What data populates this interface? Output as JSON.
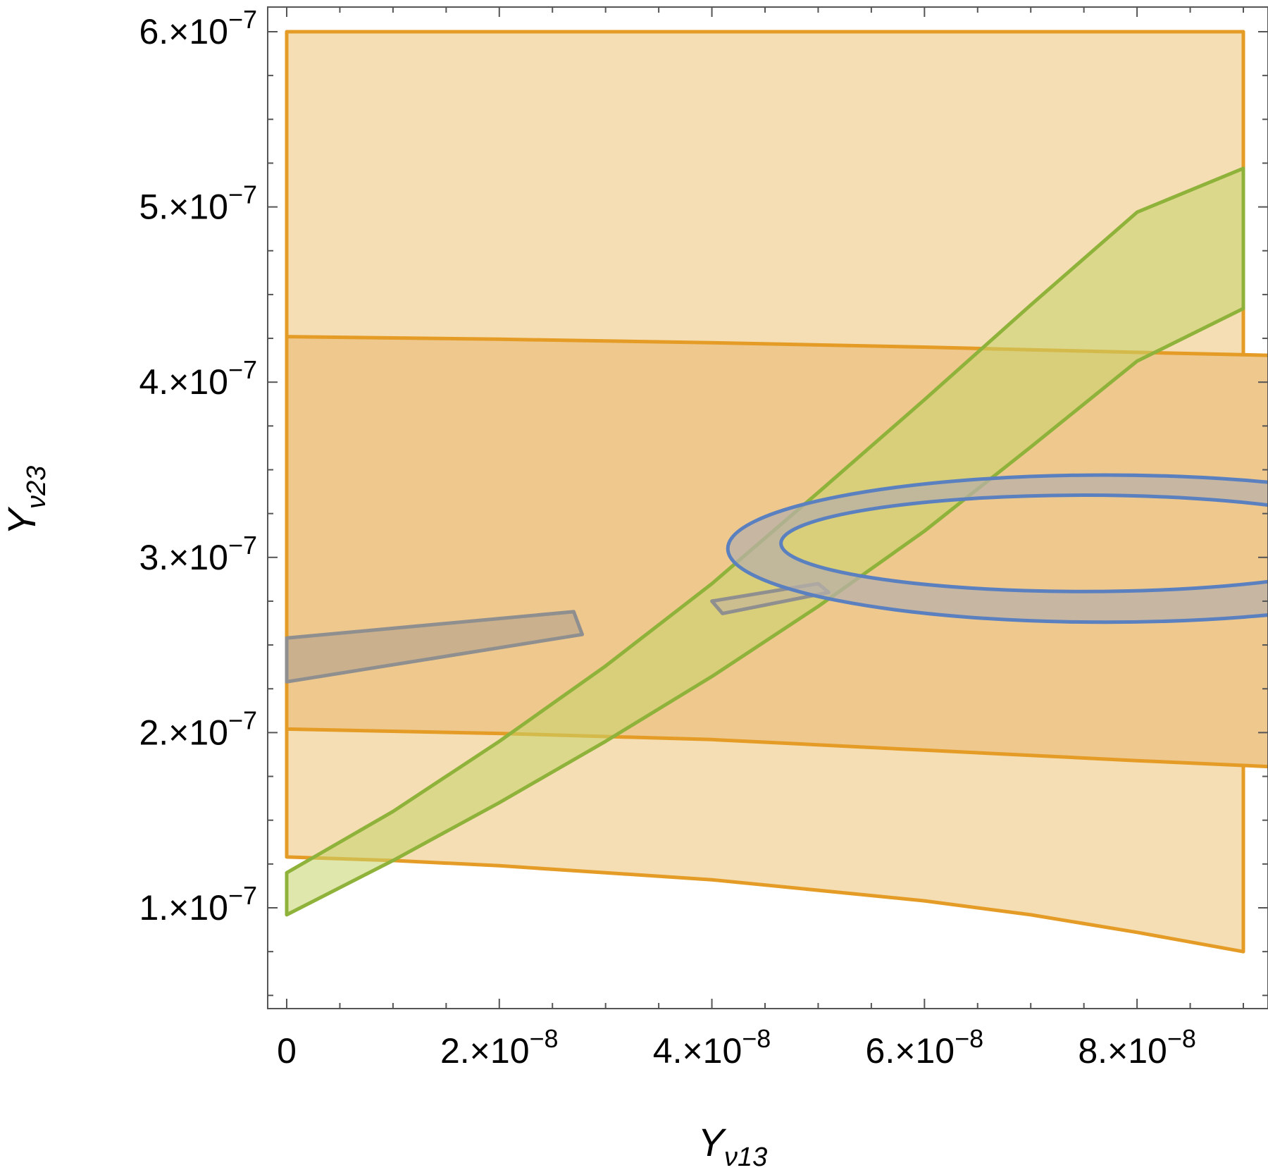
{
  "chart_data": {
    "type": "region",
    "title": "",
    "xlabel": {
      "base": "Y",
      "sub": "ν13"
    },
    "ylabel": {
      "base": "Y",
      "sub": "ν23"
    },
    "xlim": [
      0,
      9e-08
    ],
    "ylim": [
      5e-08,
      6e-07
    ],
    "grid": false,
    "x_ticks": [
      {
        "value": 0,
        "label": "0"
      },
      {
        "value": 2e-08,
        "mantissa": "2.",
        "exp": "−8"
      },
      {
        "value": 4e-08,
        "mantissa": "4.",
        "exp": "−8"
      },
      {
        "value": 6e-08,
        "mantissa": "6.",
        "exp": "−8"
      },
      {
        "value": 8e-08,
        "mantissa": "8.",
        "exp": "−8"
      }
    ],
    "y_ticks": [
      {
        "value": 1e-07,
        "mantissa": "1.",
        "exp": "−7"
      },
      {
        "value": 2e-07,
        "mantissa": "2.",
        "exp": "−7"
      },
      {
        "value": 3e-07,
        "mantissa": "3.",
        "exp": "−7"
      },
      {
        "value": 4e-07,
        "mantissa": "4.",
        "exp": "−7"
      },
      {
        "value": 5e-07,
        "mantissa": "5.",
        "exp": "−7"
      },
      {
        "value": 6e-07,
        "mantissa": "6.",
        "exp": "−7"
      }
    ],
    "regions": [
      {
        "id": "orange-outer",
        "fill": "#f5deb3",
        "fill_opacity": 1,
        "stroke": "#e49c26",
        "points": [
          [
            0,
            6e-07
          ],
          [
            9e-08,
            6e-07
          ],
          [
            9e-08,
            5.2e-07
          ],
          [
            9e-08,
            4.4e-07
          ],
          [
            9e-08,
            3e-07
          ],
          [
            9e-08,
            1e-07
          ],
          [
            9e-08,
            7.5e-08
          ],
          [
            8e-08,
            8.6e-08
          ],
          [
            7e-08,
            9.6e-08
          ],
          [
            6e-08,
            1.04e-07
          ],
          [
            4e-08,
            1.16e-07
          ],
          [
            2e-08,
            1.24e-07
          ],
          [
            1e-08,
            1.27e-07
          ],
          [
            0,
            1.29e-07
          ]
        ]
      },
      {
        "id": "orange-inner",
        "fill": "#efc88e",
        "fill_opacity": 1,
        "stroke": "#e49c26",
        "points": [
          [
            0,
            4.26e-07
          ],
          [
            2e-08,
            4.245e-07
          ],
          [
            4e-08,
            4.225e-07
          ],
          [
            6e-08,
            4.2e-07
          ],
          [
            8e-08,
            4.17e-07
          ],
          [
            9.45e-08,
            4.15e-07
          ],
          [
            9.45e-08,
            1.8e-07
          ],
          [
            8e-08,
            1.84e-07
          ],
          [
            6e-08,
            1.9e-07
          ],
          [
            4e-08,
            1.96e-07
          ],
          [
            2e-08,
            1.995e-07
          ],
          [
            0,
            2.02e-07
          ]
        ]
      },
      {
        "id": "green-band",
        "fill": "#c6d46a",
        "fill_opacity": 0.55,
        "stroke": "#8fb33a",
        "points": [
          [
            0,
            1.2e-07
          ],
          [
            1e-08,
            1.55e-07
          ],
          [
            2e-08,
            1.95e-07
          ],
          [
            3e-08,
            2.38e-07
          ],
          [
            4e-08,
            2.85e-07
          ],
          [
            5e-08,
            3.37e-07
          ],
          [
            6e-08,
            3.9e-07
          ],
          [
            7e-08,
            4.44e-07
          ],
          [
            8e-08,
            4.97e-07
          ],
          [
            9e-08,
            5.22e-07
          ],
          [
            9e-08,
            4.42e-07
          ],
          [
            8e-08,
            4.12e-07
          ],
          [
            7e-08,
            3.63e-07
          ],
          [
            6e-08,
            3.15e-07
          ],
          [
            5e-08,
            2.72e-07
          ],
          [
            4e-08,
            2.32e-07
          ],
          [
            3e-08,
            1.95e-07
          ],
          [
            2e-08,
            1.6e-07
          ],
          [
            1e-08,
            1.27e-07
          ],
          [
            0,
            9.6e-08
          ]
        ]
      },
      {
        "id": "gray-strip-left",
        "fill": "#b0a08a",
        "fill_opacity": 0.6,
        "stroke": "#8f8f8f",
        "points": [
          [
            0,
            2.54e-07
          ],
          [
            2.7e-08,
            2.69e-07
          ],
          [
            2.78e-08,
            2.56e-07
          ],
          [
            0,
            2.29e-07
          ]
        ]
      },
      {
        "id": "gray-strip-mid",
        "fill": "#c8b89a",
        "fill_opacity": 0.7,
        "stroke": "#8f8f8f",
        "points": [
          [
            4e-08,
            2.75e-07
          ],
          [
            5e-08,
            2.85e-07
          ],
          [
            5.1e-08,
            2.8e-07
          ],
          [
            4.1e-08,
            2.68e-07
          ]
        ]
      }
    ],
    "rings": [
      {
        "id": "blue-ring",
        "fill": "#b8b0a8",
        "fill_opacity": 0.75,
        "stroke": "#5a80c0",
        "outer": {
          "cx": 7.7e-08,
          "cy": 3.05e-07,
          "rx": 3.55e-08,
          "ry": 4.2e-08
        },
        "inner": {
          "cx": 7.5e-08,
          "cy": 3.08e-07,
          "rx": 2.85e-08,
          "ry": 2.75e-08
        }
      }
    ]
  }
}
